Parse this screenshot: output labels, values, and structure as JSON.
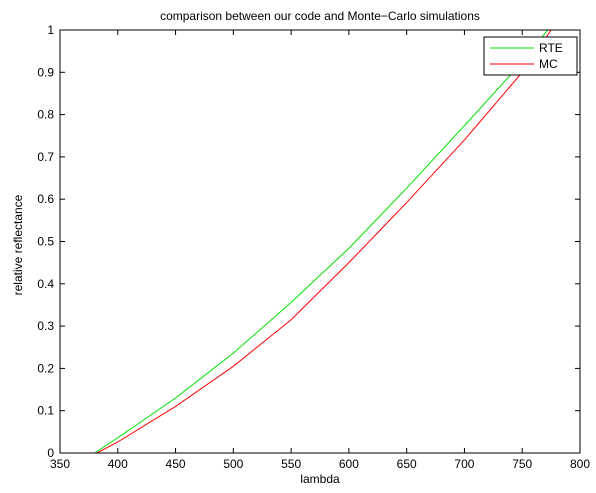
{
  "chart_data": {
    "type": "line",
    "title": "comparison between our code and Monte−Carlo simulations",
    "xlabel": "lambda",
    "ylabel": "relative reflectance",
    "xlim": [
      350,
      800
    ],
    "ylim": [
      0,
      1
    ],
    "xticks": [
      350,
      400,
      450,
      500,
      550,
      600,
      650,
      700,
      750,
      800
    ],
    "yticks": [
      0,
      0.1,
      0.2,
      0.3,
      0.4,
      0.5,
      0.6,
      0.7,
      0.8,
      0.9,
      1
    ],
    "xtick_labels": [
      "350",
      "400",
      "450",
      "500",
      "550",
      "600",
      "650",
      "700",
      "750",
      "800"
    ],
    "ytick_labels": [
      "0",
      "0.1",
      "0.2",
      "0.3",
      "0.4",
      "0.5",
      "0.6",
      "0.7",
      "0.8",
      "0.9",
      "1"
    ],
    "grid": false,
    "legend": {
      "position": "top-right",
      "entries": [
        "RTE",
        "MC"
      ]
    },
    "series": [
      {
        "name": "RTE",
        "color": "#00e000",
        "x": [
          380,
          400,
          450,
          500,
          550,
          600,
          650,
          700,
          750,
          772
        ],
        "y": [
          0.0,
          0.036,
          0.13,
          0.236,
          0.356,
          0.484,
          0.626,
          0.774,
          0.924,
          1.0
        ]
      },
      {
        "name": "MC",
        "color": "#ff0000",
        "x": [
          382,
          400,
          450,
          500,
          550,
          600,
          650,
          700,
          750,
          775
        ],
        "y": [
          0.0,
          0.026,
          0.11,
          0.205,
          0.315,
          0.45,
          0.592,
          0.74,
          0.9,
          1.0
        ]
      }
    ]
  }
}
